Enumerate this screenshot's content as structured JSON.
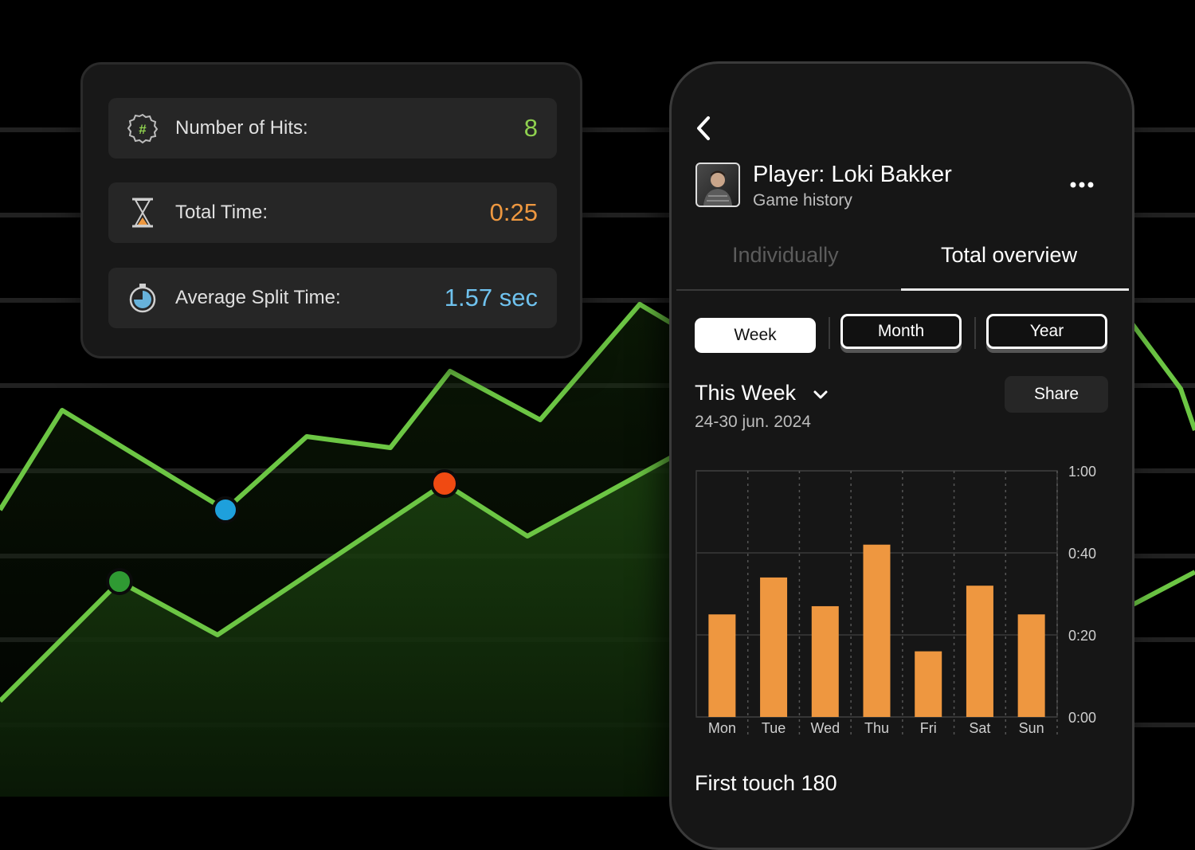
{
  "stats": [
    {
      "icon": "hash-badge-icon",
      "label": "Number of Hits:",
      "value": "8",
      "color": "#8fd14f"
    },
    {
      "icon": "hourglass-icon",
      "label": "Total Time:",
      "value": "0:25",
      "color": "#ee9840"
    },
    {
      "icon": "stopwatch-icon",
      "label": "Average Split Time:",
      "value": "1.57 sec",
      "color": "#6fc2ee"
    }
  ],
  "player": {
    "name": "Player: Loki Bakker",
    "subtitle": "Game history"
  },
  "tabs": {
    "individually": "Individually",
    "total_overview": "Total overview",
    "active": "total_overview"
  },
  "range_buttons": {
    "week": "Week",
    "month": "Month",
    "year": "Year",
    "selected": "week"
  },
  "period": {
    "title": "This Week",
    "dates": "24-30 jun. 2024"
  },
  "share_label": "Share",
  "section_title": "First touch 180",
  "colors": {
    "bar": "#ee9740",
    "line": "#6cc644",
    "hits": "#8fd14f",
    "time": "#ee9840",
    "split": "#6fc2ee"
  },
  "chart_data": {
    "type": "bar",
    "categories": [
      "Mon",
      "Tue",
      "Wed",
      "Thu",
      "Fri",
      "Sat",
      "Sun"
    ],
    "values": [
      25,
      34,
      27,
      42,
      16,
      32,
      25
    ],
    "ytick_labels": [
      "1:00",
      "0:40",
      "0:20",
      "0:00"
    ],
    "ytick_values": [
      60,
      40,
      20,
      0
    ],
    "ylim": [
      0,
      60
    ],
    "grid": true
  }
}
